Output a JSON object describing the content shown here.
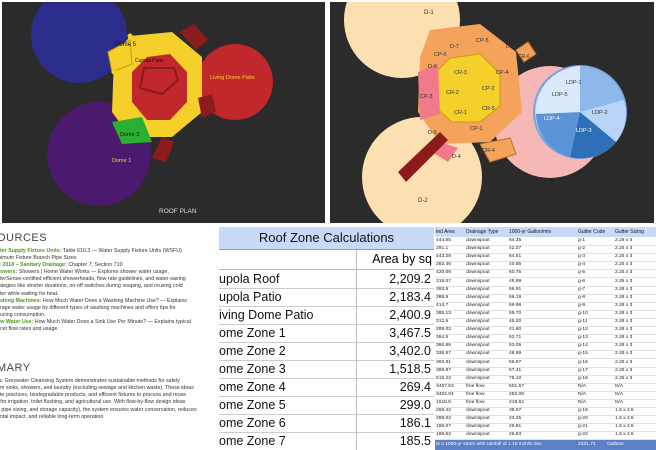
{
  "roof_plan": {
    "caption": "ROOF PLAN",
    "labels": {
      "dome5": "Dome 5",
      "cupola_patio": "Cupola Patio",
      "living_dome_patio": "Living Dome Patio",
      "dome3": "Dome 3",
      "dome1": "Dome 1"
    },
    "colors": {
      "blue": "#2c2c8c",
      "purple": "#4b1a6e",
      "red": "#c0282c",
      "yellow": "#f5d02a",
      "maroon": "#8c1c1c",
      "green": "#29b030"
    }
  },
  "zones_diagram": {
    "labels": {
      "d1": "D-1",
      "d2": "D-2",
      "d4": "D-4",
      "d5": "D-5",
      "d6": "D-6",
      "d7": "D-7",
      "d8": "D-8",
      "cr1": "CR-1",
      "cr2": "CR-2",
      "cr3": "CR-3",
      "cr4": "CR-4",
      "cr5": "CR-5",
      "cr6": "CR-6",
      "cp1": "CP-1",
      "cp2": "CP-2",
      "cp3": "CP-3",
      "cp4": "CP-4",
      "cp5": "CP-5",
      "cp6": "CP-6",
      "ldp1": "LDP-1",
      "ldp2": "LDP-2",
      "ldp3": "LDP-3",
      "ldp4": "LDP-4",
      "ldp5": "LDP-5"
    }
  },
  "sources": {
    "heading": "OURCES",
    "lines": [
      {
        "lead": "ater Supply Fixture Units:",
        "text": " Table 610.3 — Water Supply Fixture Units (WSFU)"
      },
      {
        "lead": "",
        "text": "inimum Fixture Branch Pipe Sizes"
      },
      {
        "lead": "© 2018 – Sanitary Drainage:",
        "text": " Chapter 7, Section 710"
      },
      {
        "lead": "howers:",
        "text": " Showers | Home Water Works — Explores shower water usage,"
      },
      {
        "lead": "",
        "text": "aterSense-certified efficient showerheads, flow rate guidelines, and water-saving"
      },
      {
        "lead": "",
        "text": "rategies like shorter durations, on-off switches during soaping, and reusing cold"
      },
      {
        "lead": "",
        "text": "ater while waiting for heat."
      },
      {
        "lead": "ashing Machines:",
        "text": " How Much Water Does a Washing Machine Use? — Explains"
      },
      {
        "lead": "",
        "text": "erage water usage by different types of washing machines and offers tips for"
      },
      {
        "lead": "",
        "text": "ducing consumption."
      },
      {
        "lead": "ow Water Use:",
        "text": " How Much Water Does a Sink Use Per Minute? — Explains typical"
      },
      {
        "lead": "",
        "text": "ucet flow rates and usage."
      }
    ],
    "summary_heading": "MARY",
    "summary_lines": [
      "ra: Greywater Cleansing System demonstrates sustainable methods for safely",
      "om sinks, showers, and laundry (excluding sewage and kitchen waste). These ideas",
      "ate practices, biodegradable products, and efficient fixtures to process and reuse",
      "r for irrigation, toilet flushing, and agricultural use. With flow-by-flow design ideas",
      "d pipe sizing, and storage capacity), the system ensures water conservation, reduces",
      "ental impact, and reliable long-term operation."
    ]
  },
  "calc": {
    "title": "Roof Zone Calculations",
    "col_header": "Area by sq",
    "rows": [
      {
        "name": "upola Roof",
        "value": "2,209.2"
      },
      {
        "name": "upola Patio",
        "value": "2,183.4"
      },
      {
        "name": "iving Dome Patio",
        "value": "2,400.9"
      },
      {
        "name": "ome Zone 1",
        "value": "3,467.5"
      },
      {
        "name": "ome Zone 2",
        "value": "3,402.0"
      },
      {
        "name": "ome Zone 3",
        "value": "1,518.5"
      },
      {
        "name": "ome Zone 4",
        "value": "269.4"
      },
      {
        "name": "ome Zone 5",
        "value": "299.0"
      },
      {
        "name": "ome Zone 6",
        "value": "186.1"
      },
      {
        "name": "ome Zone 7",
        "value": "185.5"
      }
    ]
  },
  "gutter": {
    "headers": [
      "ted Area",
      "Drainage Type",
      "1000-yr Gallon/min",
      "Gutter Code",
      "Gutter Sizing"
    ],
    "rows": [
      [
        "444.55",
        "downspout",
        "64.35",
        "g-1",
        "2.25 x 3"
      ],
      [
        "291.1",
        "downspout",
        "42.07",
        "g-2",
        "2.25 x 3"
      ],
      [
        "443.28",
        "downspout",
        "64.51",
        "g-3",
        "2.25 x 3"
      ],
      [
        "282.46",
        "downspout",
        "40.85",
        "g-4",
        "2.25 x 3"
      ],
      [
        "420.09",
        "downspout",
        "60.75",
        "g-5",
        "2.25 x 3"
      ],
      [
        "318.07",
        "downspout",
        "45.99",
        "g-6",
        "2.25 x 3"
      ],
      [
        "393.5",
        "downspout",
        "56.91",
        "g-7",
        "2.25 x 3"
      ],
      [
        "388.5",
        "downspout",
        "56.19",
        "g-8",
        "2.25 x 3"
      ],
      [
        "414.7",
        "downspout",
        "59.98",
        "g-9",
        "2.25 x 3"
      ],
      [
        "385.13",
        "downspout",
        "55.70",
        "g-10",
        "2.25 x 3"
      ],
      [
        "312.5",
        "downspout",
        "45.20",
        "g-11",
        "2.25 x 3"
      ],
      [
        "289.02",
        "downspout",
        "41.80",
        "g-12",
        "2.25 x 3"
      ],
      [
        "364.5",
        "downspout",
        "52.71",
        "g-13",
        "2.25 x 3"
      ],
      [
        "366.86",
        "downspout",
        "53.05",
        "g-14",
        "2.25 x 3"
      ],
      [
        "336.67",
        "downspout",
        "48.69",
        "g-15",
        "2.25 x 3"
      ],
      [
        "393.91",
        "downspout",
        "56.97",
        "g-16",
        "2.25 x 3"
      ],
      [
        "396.97",
        "downspout",
        "57.41",
        "g-17",
        "2.25 x 3"
      ],
      [
        "519.22",
        "downspout",
        "75.10",
        "g-18",
        "2.25 x 3"
      ],
      [
        "3467.53",
        "free flow",
        "501.57",
        "N/A",
        "N/A"
      ],
      [
        "3402.04",
        "free flow",
        "492.09",
        "N/A",
        "N/A"
      ],
      [
        "1518.5",
        "free flow",
        "219.62",
        "N/A",
        "N/A"
      ],
      [
        "269.42",
        "downspout",
        "38.97",
        "g-19",
        "1.5 x 2.5"
      ],
      [
        "299.02",
        "downspout",
        "43.25",
        "g-20",
        "1.5 x 2.5"
      ],
      [
        "186.07",
        "downspout",
        "26.91",
        "g-21",
        "1.5 x 2.5"
      ],
      [
        "185.52",
        "downspout",
        "26.83",
        "g-22",
        "1.5 x 2.5"
      ]
    ],
    "footer_left": "ts a 1000-yr storm with rainfall of 1.16 inch/5 min.",
    "footer_total": "2331.71",
    "footer_unit": "Gallons"
  }
}
